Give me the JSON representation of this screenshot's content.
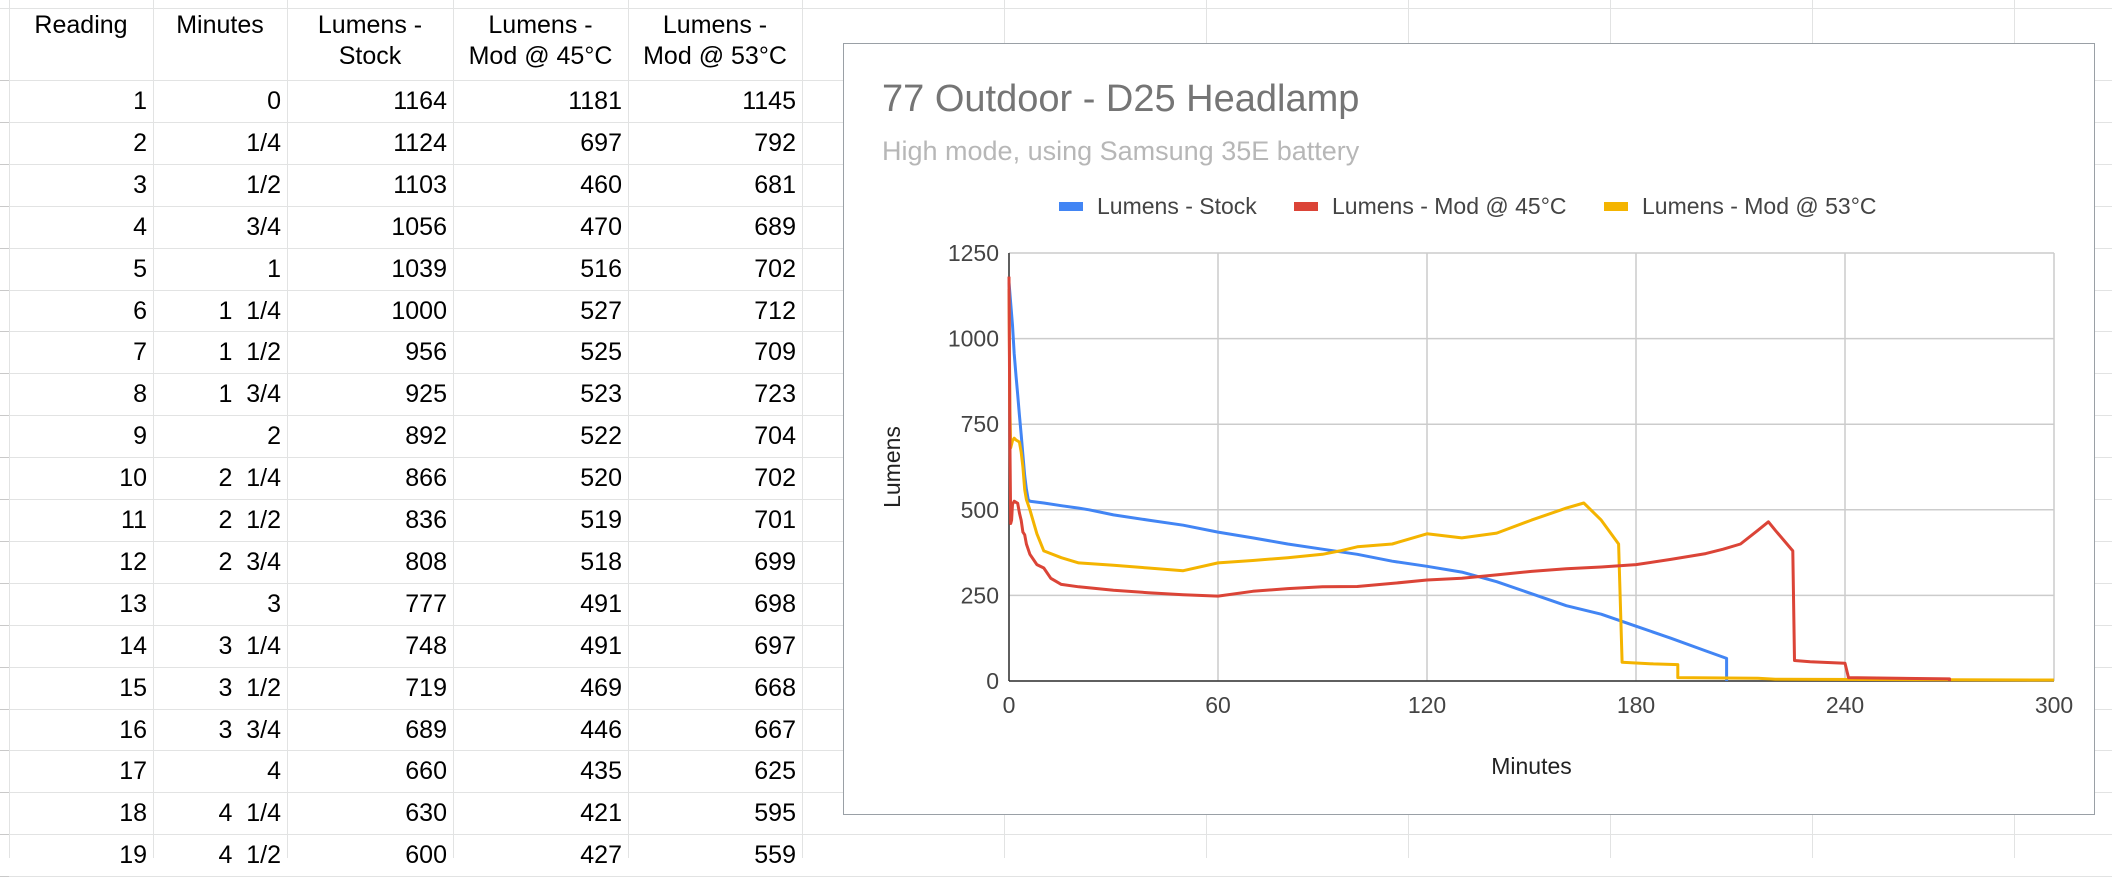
{
  "table": {
    "headers": [
      [
        "Reading"
      ],
      [
        "Minutes"
      ],
      [
        "Lumens -",
        "Stock"
      ],
      [
        "Lumens -",
        "Mod @ 45°C"
      ],
      [
        "Lumens -",
        "Mod @ 53°C"
      ]
    ],
    "rows": [
      [
        "1",
        "0",
        "1164",
        "1181",
        "1145"
      ],
      [
        "2",
        "1/4",
        "1124",
        "697",
        "792"
      ],
      [
        "3",
        "1/2",
        "1103",
        "460",
        "681"
      ],
      [
        "4",
        "3/4",
        "1056",
        "470",
        "689"
      ],
      [
        "5",
        "1",
        "1039",
        "516",
        "702"
      ],
      [
        "6",
        "1  1/4",
        "1000",
        "527",
        "712"
      ],
      [
        "7",
        "1  1/2",
        "956",
        "525",
        "709"
      ],
      [
        "8",
        "1  3/4",
        "925",
        "523",
        "723"
      ],
      [
        "9",
        "2",
        "892",
        "522",
        "704"
      ],
      [
        "10",
        "2  1/4",
        "866",
        "520",
        "702"
      ],
      [
        "11",
        "2  1/2",
        "836",
        "519",
        "701"
      ],
      [
        "12",
        "2  3/4",
        "808",
        "518",
        "699"
      ],
      [
        "13",
        "3",
        "777",
        "491",
        "698"
      ],
      [
        "14",
        "3  1/4",
        "748",
        "491",
        "697"
      ],
      [
        "15",
        "3  1/2",
        "719",
        "469",
        "668"
      ],
      [
        "16",
        "3  3/4",
        "689",
        "446",
        "667"
      ],
      [
        "17",
        "4",
        "660",
        "435",
        "625"
      ],
      [
        "18",
        "4  1/4",
        "630",
        "421",
        "595"
      ],
      [
        "19",
        "4  1/2",
        "600",
        "427",
        "559"
      ]
    ]
  },
  "chart": {
    "title": "77 Outdoor - D25 Headlamp",
    "subtitle": "High mode, using Samsung 35E battery"
  },
  "chart_data": {
    "type": "line",
    "title": "77 Outdoor - D25 Headlamp",
    "subtitle": "High mode, using Samsung 35E battery",
    "xlabel": "Minutes",
    "ylabel": "Lumens",
    "xlim": [
      0,
      300
    ],
    "ylim": [
      0,
      1250
    ],
    "xticks": [
      0,
      60,
      120,
      180,
      240,
      300
    ],
    "yticks": [
      0,
      250,
      500,
      750,
      1000,
      1250
    ],
    "grid": true,
    "legend_position": "top",
    "series": [
      {
        "name": "Lumens - Stock",
        "color": "#4285f4",
        "points": [
          [
            0,
            1164
          ],
          [
            0.5,
            1103
          ],
          [
            1,
            1039
          ],
          [
            1.5,
            956
          ],
          [
            2,
            892
          ],
          [
            2.5,
            836
          ],
          [
            3,
            777
          ],
          [
            3.5,
            719
          ],
          [
            4,
            660
          ],
          [
            4.5,
            600
          ],
          [
            5,
            560
          ],
          [
            5.5,
            530
          ],
          [
            6,
            525
          ],
          [
            10,
            520
          ],
          [
            15,
            512
          ],
          [
            20,
            505
          ],
          [
            23,
            500
          ],
          [
            30,
            485
          ],
          [
            40,
            470
          ],
          [
            50,
            455
          ],
          [
            60,
            435
          ],
          [
            70,
            418
          ],
          [
            80,
            400
          ],
          [
            90,
            385
          ],
          [
            100,
            370
          ],
          [
            110,
            350
          ],
          [
            120,
            335
          ],
          [
            130,
            318
          ],
          [
            140,
            290
          ],
          [
            150,
            255
          ],
          [
            160,
            220
          ],
          [
            170,
            195
          ],
          [
            180,
            160
          ],
          [
            190,
            125
          ],
          [
            200,
            88
          ],
          [
            206,
            66
          ],
          [
            206,
            0
          ]
        ]
      },
      {
        "name": "Lumens - Mod @ 45°C",
        "color": "#db4437",
        "points": [
          [
            0,
            1181
          ],
          [
            0.25,
            697
          ],
          [
            0.5,
            460
          ],
          [
            0.75,
            470
          ],
          [
            1,
            516
          ],
          [
            1.5,
            525
          ],
          [
            2,
            522
          ],
          [
            2.5,
            519
          ],
          [
            3,
            491
          ],
          [
            3.5,
            469
          ],
          [
            4,
            435
          ],
          [
            4.5,
            427
          ],
          [
            5,
            400
          ],
          [
            6,
            370
          ],
          [
            8,
            340
          ],
          [
            10,
            330
          ],
          [
            12,
            300
          ],
          [
            15,
            282
          ],
          [
            20,
            275
          ],
          [
            30,
            265
          ],
          [
            40,
            258
          ],
          [
            50,
            252
          ],
          [
            60,
            248
          ],
          [
            70,
            262
          ],
          [
            80,
            270
          ],
          [
            90,
            275
          ],
          [
            100,
            276
          ],
          [
            110,
            285
          ],
          [
            120,
            295
          ],
          [
            130,
            300
          ],
          [
            140,
            310
          ],
          [
            150,
            320
          ],
          [
            160,
            328
          ],
          [
            170,
            333
          ],
          [
            180,
            340
          ],
          [
            190,
            355
          ],
          [
            200,
            372
          ],
          [
            205,
            385
          ],
          [
            210,
            400
          ],
          [
            215,
            440
          ],
          [
            218,
            465
          ],
          [
            220,
            440
          ],
          [
            225,
            380
          ],
          [
            225.5,
            60
          ],
          [
            230,
            56
          ],
          [
            235,
            54
          ],
          [
            240,
            52
          ],
          [
            241,
            10
          ],
          [
            270,
            6
          ],
          [
            270,
            0
          ]
        ]
      },
      {
        "name": "Lumens - Mod @ 53°C",
        "color": "#f4b400",
        "points": [
          [
            0,
            1145
          ],
          [
            0.25,
            792
          ],
          [
            0.5,
            681
          ],
          [
            1,
            702
          ],
          [
            1.5,
            709
          ],
          [
            2,
            704
          ],
          [
            2.5,
            701
          ],
          [
            3,
            698
          ],
          [
            3.5,
            668
          ],
          [
            4,
            625
          ],
          [
            4.5,
            559
          ],
          [
            5,
            530
          ],
          [
            6,
            500
          ],
          [
            8,
            430
          ],
          [
            10,
            380
          ],
          [
            15,
            360
          ],
          [
            20,
            345
          ],
          [
            30,
            338
          ],
          [
            40,
            330
          ],
          [
            50,
            322
          ],
          [
            60,
            345
          ],
          [
            70,
            352
          ],
          [
            80,
            360
          ],
          [
            90,
            370
          ],
          [
            95,
            380
          ],
          [
            100,
            392
          ],
          [
            110,
            400
          ],
          [
            120,
            430
          ],
          [
            130,
            418
          ],
          [
            140,
            432
          ],
          [
            150,
            470
          ],
          [
            160,
            505
          ],
          [
            165,
            520
          ],
          [
            170,
            470
          ],
          [
            175,
            400
          ],
          [
            176,
            55
          ],
          [
            185,
            50
          ],
          [
            192,
            48
          ],
          [
            192,
            10
          ],
          [
            215,
            8
          ],
          [
            220,
            5
          ],
          [
            300,
            3
          ]
        ]
      }
    ]
  }
}
